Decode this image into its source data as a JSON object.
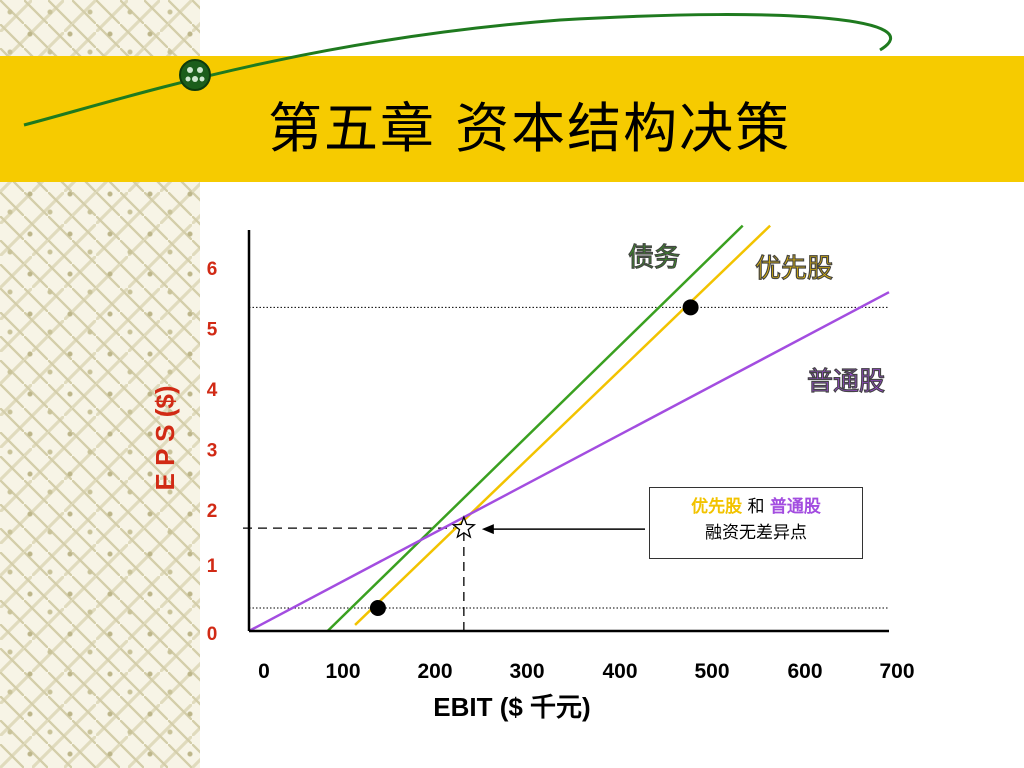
{
  "slide": {
    "title": "第五章  资本结构决策"
  },
  "annotation": {
    "preferred": "优先股",
    "conjunction": "和",
    "common": "普通股",
    "line2": "融资无差异点"
  },
  "colors": {
    "band": "#f6cb00",
    "debt": "#3aa020",
    "preferred": "#f2c300",
    "common": "#a34de0",
    "ytick": "#d12a15"
  },
  "chart_data": {
    "type": "line",
    "title": "",
    "xlabel": "EBIT ($ 千元)",
    "ylabel": "E P S ($)",
    "xlim": [
      0,
      700
    ],
    "ylim": [
      0,
      6
    ],
    "x_ticks": [
      "0",
      "100",
      "200",
      "300",
      "400",
      "500",
      "600",
      "700"
    ],
    "y_ticks": [
      "0",
      "1",
      "2",
      "3",
      "4",
      "5",
      "6"
    ],
    "series": [
      {
        "name": "债务",
        "color": "#3aa020",
        "x": [
          86,
          540
        ],
        "y": [
          0,
          6.7
        ]
      },
      {
        "name": "优先股",
        "color": "#f2c300",
        "x": [
          116,
          570
        ],
        "y": [
          0.1,
          6.7
        ]
      },
      {
        "name": "普通股",
        "color": "#a34de0",
        "x": [
          0,
          700
        ],
        "y": [
          0,
          5.6
        ]
      }
    ],
    "reference_lines": [
      {
        "orientation": "horizontal",
        "style": "dotted",
        "y": 5.35
      },
      {
        "orientation": "horizontal",
        "style": "dotted",
        "y": 0.38
      },
      {
        "orientation": "horizontal",
        "style": "dashed",
        "y": 1.7,
        "x_to": 235
      },
      {
        "orientation": "vertical",
        "style": "dashed",
        "x": 235,
        "y_to": 1.7
      }
    ],
    "points": [
      {
        "marker": "circle",
        "x": 483,
        "y": 5.35
      },
      {
        "marker": "circle",
        "x": 141,
        "y": 0.38
      },
      {
        "marker": "star",
        "x": 235,
        "y": 1.7
      }
    ]
  }
}
